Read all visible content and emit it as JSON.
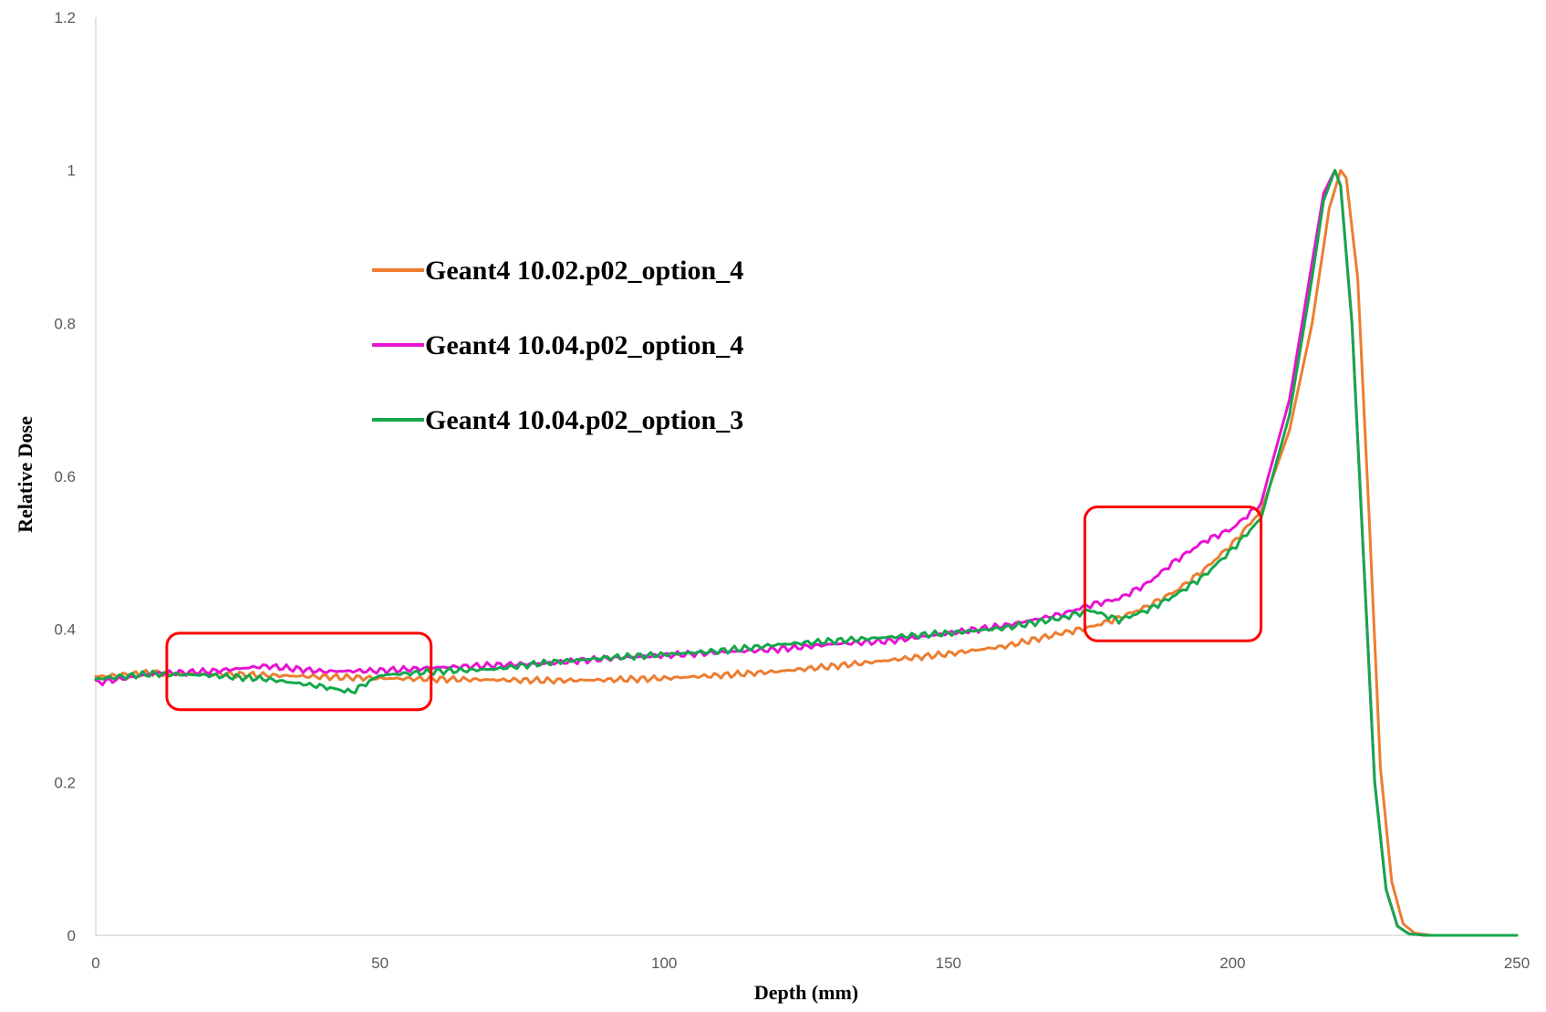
{
  "chart_data": {
    "type": "line",
    "title": "",
    "xlabel": "Depth (mm)",
    "ylabel": "Relative Dose",
    "xlim": [
      0,
      250
    ],
    "ylim": [
      0,
      1.2
    ],
    "x_ticks": [
      "0",
      "50",
      "100",
      "150",
      "200",
      "250"
    ],
    "y_ticks": [
      "0",
      "0.2",
      "0.4",
      "0.6",
      "0.8",
      "1",
      "1.2"
    ],
    "grid": false,
    "legend_position": "upper-left inside plot",
    "series": [
      {
        "name": "Geant4 10.02.p02_option_4",
        "color": "#ED7D31",
        "x": [
          0,
          10,
          20,
          30,
          40,
          50,
          60,
          70,
          80,
          90,
          100,
          110,
          120,
          130,
          140,
          150,
          160,
          170,
          175,
          180,
          185,
          190,
          195,
          200,
          205,
          210,
          214,
          217,
          219,
          220,
          222,
          224,
          226,
          228,
          230,
          232,
          235,
          240,
          250
        ],
        "values": [
          0.338,
          0.343,
          0.342,
          0.34,
          0.338,
          0.336,
          0.335,
          0.334,
          0.333,
          0.334,
          0.336,
          0.34,
          0.345,
          0.352,
          0.36,
          0.368,
          0.378,
          0.395,
          0.403,
          0.415,
          0.43,
          0.45,
          0.478,
          0.512,
          0.555,
          0.66,
          0.8,
          0.95,
          1.0,
          0.99,
          0.86,
          0.55,
          0.22,
          0.07,
          0.015,
          0.003,
          0.0,
          0.0,
          0.0
        ]
      },
      {
        "name": "Geant4 10.04.p02_option_4",
        "color": "#E812D3",
        "x": [
          0,
          10,
          20,
          30,
          40,
          50,
          60,
          70,
          80,
          90,
          100,
          110,
          120,
          130,
          140,
          150,
          160,
          170,
          175,
          180,
          185,
          190,
          195,
          200,
          205,
          210,
          214,
          216,
          218,
          219,
          221,
          223,
          225,
          227,
          229,
          231,
          234,
          240,
          250
        ],
        "values": [
          0.33,
          0.342,
          0.345,
          0.352,
          0.345,
          0.346,
          0.35,
          0.353,
          0.356,
          0.362,
          0.366,
          0.37,
          0.374,
          0.381,
          0.385,
          0.395,
          0.405,
          0.42,
          0.432,
          0.44,
          0.46,
          0.49,
          0.515,
          0.532,
          0.565,
          0.7,
          0.88,
          0.97,
          1.0,
          0.98,
          0.8,
          0.5,
          0.2,
          0.06,
          0.012,
          0.002,
          0.0,
          0.0,
          0.0
        ]
      },
      {
        "name": "Geant4 10.04.p02_option_3",
        "color": "#14A84B",
        "x": [
          0,
          10,
          20,
          30,
          40,
          45,
          50,
          60,
          70,
          80,
          90,
          100,
          110,
          120,
          130,
          140,
          150,
          160,
          170,
          175,
          180,
          185,
          190,
          195,
          200,
          205,
          210,
          214,
          216,
          218,
          219,
          221,
          223,
          225,
          227,
          229,
          231,
          234,
          240,
          250
        ],
        "values": [
          0.335,
          0.342,
          0.34,
          0.335,
          0.325,
          0.318,
          0.34,
          0.345,
          0.348,
          0.357,
          0.363,
          0.367,
          0.372,
          0.38,
          0.385,
          0.39,
          0.395,
          0.402,
          0.415,
          0.425,
          0.412,
          0.425,
          0.445,
          0.47,
          0.505,
          0.545,
          0.68,
          0.86,
          0.96,
          1.0,
          0.98,
          0.8,
          0.5,
          0.2,
          0.06,
          0.012,
          0.002,
          0.0,
          0.0,
          0.0
        ]
      }
    ],
    "annotations": [
      {
        "type": "highlight-box",
        "color": "#FF0000",
        "x_range": [
          12.5,
          59
        ],
        "y_range": [
          0.295,
          0.395
        ]
      },
      {
        "type": "highlight-box",
        "color": "#FF0000",
        "x_range": [
          174,
          205
        ],
        "y_range": [
          0.385,
          0.56
        ]
      }
    ]
  }
}
